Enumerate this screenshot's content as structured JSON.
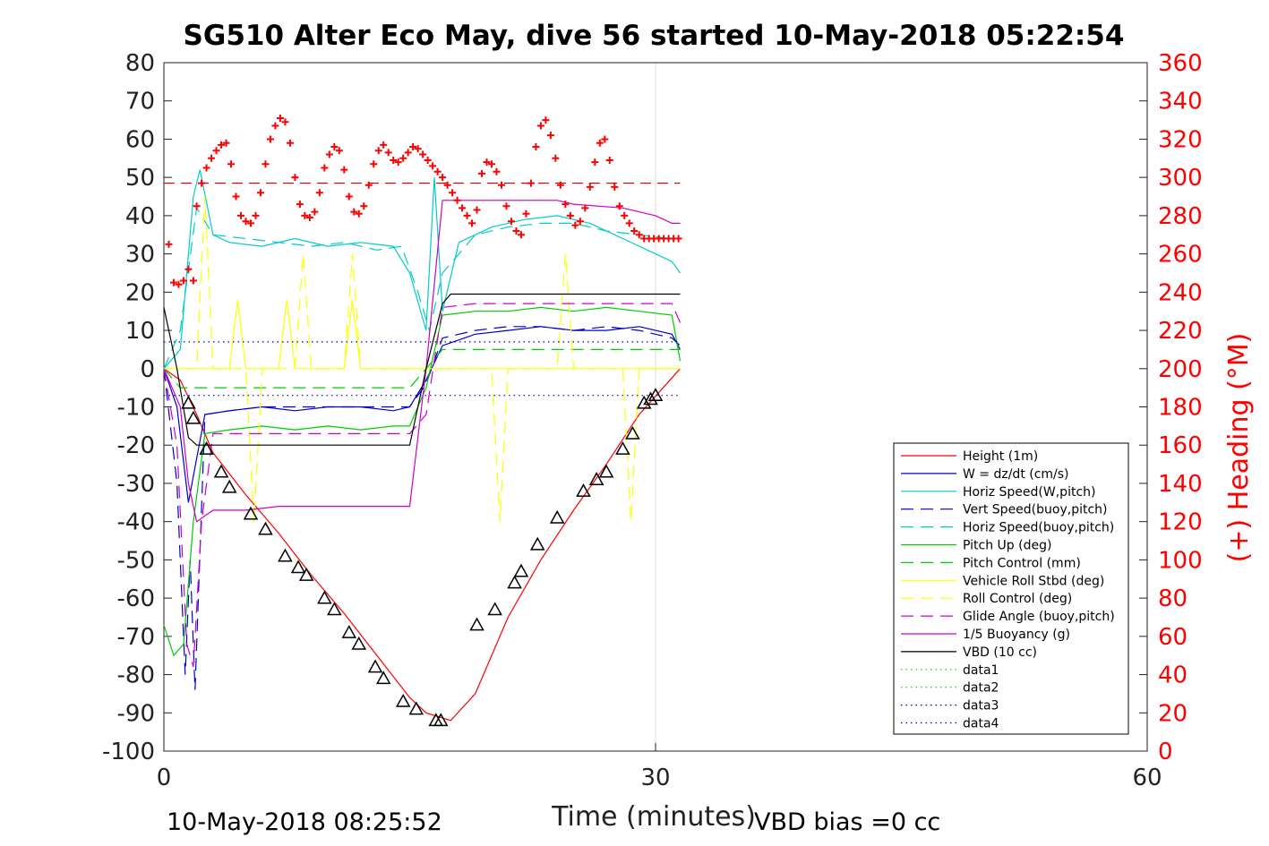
{
  "chart_data": {
    "type": "line",
    "title": "SG510 Alter Eco May, dive 56 started 10-May-2018 05:22:54",
    "xlabel": "Time (minutes)",
    "ylabel_right": "(+) Heading (°M)",
    "xlim": [
      0,
      60
    ],
    "ylim": [
      -100,
      80
    ],
    "ylim_right": [
      0,
      360
    ],
    "x_ticks": [
      "0",
      "30",
      "60"
    ],
    "y_ticks": [
      "80",
      "70",
      "60",
      "50",
      "40",
      "30",
      "20",
      "10",
      "0",
      "-10",
      "-20",
      "-30",
      "-40",
      "-50",
      "-60",
      "-70",
      "-80",
      "-90",
      "-100"
    ],
    "y_ticks_right": [
      "360",
      "340",
      "320",
      "300",
      "280",
      "260",
      "240",
      "220",
      "200",
      "180",
      "160",
      "140",
      "120",
      "100",
      "80",
      "60",
      "40",
      "20",
      "0"
    ],
    "grid": "x-only",
    "legend_placement": "lower-right",
    "footer_left": "10-May-2018 08:25:52",
    "footer_right": "VBD bias =0 cc",
    "series": [
      {
        "name": "Height (1m)",
        "color": "#ff0000",
        "style": "solid",
        "x": [
          0,
          1,
          2,
          3,
          5,
          7,
          9,
          11,
          13,
          15,
          16,
          17.5,
          19,
          21,
          23,
          25,
          27,
          29,
          31.5
        ],
        "y": [
          0,
          -3,
          -12,
          -22,
          -33,
          -43,
          -54,
          -64,
          -75,
          -86,
          -90,
          -92,
          -85,
          -65,
          -50,
          -37,
          -25,
          -12,
          0
        ]
      },
      {
        "name": "W = dz/dt (cm/s)",
        "color": "#0000cc",
        "style": "solid",
        "x": [
          0,
          0.8,
          1.5,
          2.5,
          4,
          6,
          8,
          10,
          12,
          14,
          15,
          16,
          17,
          19,
          21,
          23,
          25,
          27,
          29,
          31,
          31.5
        ],
        "y": [
          0,
          -10,
          -35,
          -12,
          -11,
          -10,
          -11,
          -10,
          -10,
          -11,
          -10,
          -3,
          6,
          9,
          10,
          11,
          10,
          10,
          11,
          9,
          5
        ]
      },
      {
        "name": "Horiz Speed(W,pitch)",
        "color": "#00cccc",
        "style": "solid",
        "x": [
          0,
          1,
          1.8,
          2.2,
          3,
          4,
          6,
          8,
          10,
          12,
          14,
          15,
          16,
          16.5,
          17,
          18,
          20,
          22,
          24,
          26,
          28,
          30,
          31,
          31.5
        ],
        "y": [
          0,
          5,
          45,
          52,
          35,
          33,
          32,
          34,
          32,
          33,
          32,
          25,
          10,
          50,
          15,
          33,
          37,
          39,
          40,
          38,
          34,
          30,
          28,
          25
        ]
      },
      {
        "name": "Vert Speed(buoy,pitch)",
        "color": "#0000cc",
        "style": "dashed",
        "x": [
          0,
          0.8,
          1.3,
          1.6,
          1.9,
          2.5,
          4,
          6,
          8,
          10,
          12,
          14,
          15,
          16,
          17,
          19,
          21,
          23,
          25,
          27,
          29,
          31,
          31.5
        ],
        "y": [
          0,
          -30,
          -80,
          -50,
          -84,
          -12,
          -11,
          -10,
          -10,
          -10,
          -10,
          -10,
          -10,
          -4,
          8,
          10,
          11,
          11,
          10,
          11,
          10,
          8,
          6
        ]
      },
      {
        "name": "Horiz Speed(buoy,pitch)",
        "color": "#00cccc",
        "style": "dashed",
        "x": [
          0,
          1,
          2,
          3,
          5,
          7,
          9,
          11,
          13,
          14.5,
          15.5,
          16.2,
          17,
          19,
          21,
          23,
          25,
          27,
          29,
          31,
          31.5
        ],
        "y": [
          0,
          10,
          42,
          35,
          34,
          33,
          32,
          33,
          31,
          32,
          20,
          10,
          25,
          35,
          37,
          38,
          38,
          36,
          35,
          34,
          34
        ]
      },
      {
        "name": "Pitch Up (deg)",
        "color": "#00cc00",
        "style": "solid",
        "x": [
          0,
          0.6,
          1.2,
          1.8,
          2.5,
          4,
          6,
          8,
          10,
          12,
          14,
          15,
          16,
          17,
          19,
          21,
          23,
          25,
          27,
          29,
          31,
          31.5
        ],
        "y": [
          -67,
          -75,
          -72,
          -40,
          -17,
          -16,
          -15,
          -16,
          -15,
          -16,
          -15,
          -15,
          -5,
          14,
          15,
          15,
          16,
          15,
          16,
          15,
          14,
          2
        ]
      },
      {
        "name": "Pitch Control (mm)",
        "color": "#00cc00",
        "style": "dashed",
        "x": [
          0,
          1,
          2,
          3,
          5,
          8,
          11,
          14,
          15,
          16,
          17,
          20,
          25,
          31.5
        ],
        "y": [
          0,
          -5,
          -5,
          -5,
          -5,
          -5,
          -5,
          -5,
          -5,
          0,
          5,
          5,
          5,
          5
        ]
      },
      {
        "name": "Vehicle Roll Stbd (deg)",
        "color": "#ffff00",
        "style": "solid",
        "x": [
          0,
          2,
          2.5,
          3,
          3.5,
          4,
          4.5,
          5,
          6,
          7,
          7.5,
          8,
          8.5,
          9,
          10,
          11,
          11.5,
          12,
          12.5,
          13,
          14,
          15,
          16,
          17,
          19,
          21,
          23,
          25,
          27,
          29,
          31.5
        ],
        "y": [
          0,
          0,
          0,
          0,
          0,
          0,
          18,
          0,
          0,
          0,
          18,
          0,
          0,
          0,
          0,
          0,
          18,
          0,
          0,
          0,
          0,
          0,
          0,
          0,
          0,
          0,
          0,
          0,
          0,
          0,
          0
        ]
      },
      {
        "name": "Roll Control (deg)",
        "color": "#ffff00",
        "style": "dashed",
        "x": [
          0,
          2,
          2.5,
          3,
          5,
          5.5,
          6,
          8,
          8.5,
          9,
          11,
          11.5,
          12,
          14,
          15,
          17,
          20,
          20.5,
          21,
          24,
          24.5,
          25,
          28,
          28.5,
          29,
          31.5
        ],
        "y": [
          0,
          0,
          45,
          0,
          0,
          -40,
          0,
          0,
          30,
          0,
          0,
          30,
          0,
          0,
          0,
          0,
          0,
          -40,
          0,
          0,
          30,
          0,
          0,
          -40,
          0,
          0
        ]
      },
      {
        "name": "Glide Angle (buoy,pitch)",
        "color": "#cc00cc",
        "style": "dashed",
        "x": [
          0,
          0.8,
          1.4,
          1.8,
          2.3,
          3,
          5,
          8,
          11,
          14,
          15,
          16,
          17,
          19,
          22,
          25,
          28,
          31,
          31.5
        ],
        "y": [
          0,
          -20,
          -72,
          -78,
          -40,
          -17,
          -17,
          -17,
          -17,
          -17,
          -17,
          -12,
          16,
          17,
          17,
          17,
          17,
          17,
          12
        ]
      },
      {
        "name": "1/5 Buoyancy (g)",
        "color": "#cc00cc",
        "style": "solid",
        "x": [
          0,
          1,
          1.5,
          2,
          3,
          5,
          7,
          9,
          11,
          13,
          14.5,
          15,
          16,
          17,
          18,
          20,
          24,
          25,
          28,
          30,
          31,
          31.5
        ],
        "y": [
          0,
          -10,
          -30,
          -40,
          -37,
          -37,
          -36,
          -36,
          -36,
          -36,
          -36,
          -36,
          0,
          44,
          44,
          44,
          44,
          43,
          42,
          40,
          38,
          38
        ]
      },
      {
        "name": "VBD (10 cc)",
        "color": "#000000",
        "style": "solid",
        "x": [
          0,
          0.8,
          1.5,
          2,
          5,
          10,
          14.5,
          15,
          16,
          17,
          17.5,
          18,
          25,
          31.5
        ],
        "y": [
          16,
          0,
          -18,
          -20,
          -20,
          -20,
          -20,
          -20,
          0,
          17,
          19.5,
          19.5,
          19.5,
          19.5
        ]
      },
      {
        "name": "data1",
        "color": "#00cc00",
        "style": "dotted",
        "x": [],
        "y": []
      },
      {
        "name": "data2",
        "color": "#00cc00",
        "style": "dotted",
        "x": [],
        "y": []
      },
      {
        "name": "data3",
        "color": "#0000cc",
        "style": "dotted",
        "x": [
          0,
          31.5
        ],
        "y": [
          7,
          7
        ]
      },
      {
        "name": "data4",
        "color": "#0000cc",
        "style": "dotted",
        "x": [
          0,
          31.5
        ],
        "y": [
          -7,
          -7
        ]
      }
    ],
    "heading_target": {
      "axis": "right",
      "color": "#cc0000",
      "style": "dashed",
      "x": [
        0,
        31.5
      ],
      "y": [
        297,
        297
      ]
    },
    "heading_points": {
      "axis": "right",
      "color": "#ff0000",
      "marker": "+",
      "x": [
        0.3,
        0.6,
        0.9,
        1.2,
        1.5,
        1.8,
        2.0,
        2.3,
        2.6,
        2.9,
        3.2,
        3.5,
        3.8,
        4.1,
        4.4,
        4.7,
        5.0,
        5.3,
        5.6,
        5.9,
        6.2,
        6.5,
        6.8,
        7.1,
        7.4,
        7.7,
        8.0,
        8.3,
        8.6,
        8.9,
        9.2,
        9.5,
        9.8,
        10.1,
        10.4,
        10.7,
        11.0,
        11.3,
        11.6,
        11.9,
        12.2,
        12.5,
        12.8,
        13.1,
        13.4,
        13.7,
        14.0,
        14.3,
        14.6,
        14.9,
        15.2,
        15.5,
        15.8,
        16.1,
        16.4,
        16.7,
        17.0,
        17.3,
        17.6,
        17.9,
        18.2,
        18.5,
        18.8,
        19.1,
        19.4,
        19.7,
        20.0,
        20.3,
        20.6,
        20.9,
        21.2,
        21.5,
        21.8,
        22.1,
        22.4,
        22.7,
        23.0,
        23.3,
        23.6,
        23.9,
        24.2,
        24.5,
        24.8,
        25.1,
        25.4,
        25.7,
        26.0,
        26.3,
        26.6,
        26.9,
        27.2,
        27.5,
        27.8,
        28.1,
        28.4,
        28.7,
        29.0,
        29.3,
        29.6,
        29.9,
        30.2,
        30.5,
        30.8,
        31.1,
        31.4
      ],
      "y": [
        265,
        245,
        244,
        246,
        252,
        246,
        285,
        297,
        305,
        310,
        314,
        317,
        318,
        307,
        290,
        280,
        277,
        276,
        280,
        292,
        307,
        320,
        327,
        331,
        329,
        318,
        300,
        286,
        280,
        279,
        282,
        292,
        305,
        312,
        316,
        314,
        304,
        290,
        282,
        281,
        285,
        296,
        307,
        314,
        317,
        313,
        309,
        308,
        310,
        313,
        316,
        315,
        312,
        309,
        306,
        303,
        300,
        296,
        292,
        288,
        284,
        280,
        276,
        283,
        302,
        308,
        307,
        303,
        296,
        285,
        277,
        272,
        270,
        281,
        297,
        316,
        327,
        330,
        322,
        310,
        296,
        286,
        280,
        275,
        277,
        284,
        295,
        308,
        318,
        320,
        309,
        295,
        285,
        280,
        276,
        272,
        270,
        268,
        268,
        268,
        268,
        268,
        268,
        268,
        268
      ]
    },
    "markers": {
      "color": "#000000",
      "marker": "triangle",
      "x": [
        1.5,
        1.8,
        2.6,
        3.5,
        4.0,
        5.3,
        6.2,
        7.4,
        8.2,
        8.7,
        9.8,
        10.4,
        11.3,
        11.9,
        12.9,
        13.4,
        14.6,
        15.4,
        16.6,
        16.9,
        19.1,
        20.2,
        21.4,
        21.8,
        22.8,
        24.0,
        25.6,
        26.4,
        27.0,
        28.0,
        28.6,
        29.3,
        29.7,
        30.0
      ],
      "y": [
        -9,
        -13,
        -21,
        -27,
        -31,
        -38,
        -42,
        -49,
        -52,
        -54,
        -60,
        -63,
        -69,
        -72,
        -78,
        -81,
        -87,
        -89,
        -92,
        -92,
        -67,
        -63,
        -56,
        -53,
        -46,
        -39,
        -32,
        -29,
        -27,
        -21,
        -17,
        -9,
        -8,
        -7
      ]
    },
    "legend_entries": [
      "Height (1m)",
      "W = dz/dt (cm/s)",
      "Horiz Speed(W,pitch)",
      "Vert Speed(buoy,pitch)",
      "Horiz Speed(buoy,pitch)",
      "Pitch Up (deg)",
      "Pitch Control (mm)",
      "Vehicle Roll Stbd (deg)",
      "Roll Control (deg)",
      "Glide Angle (buoy,pitch)",
      "1/5 Buoyancy (g)",
      "VBD (10 cc)",
      "data1",
      "data2",
      "data3",
      "data4"
    ]
  }
}
